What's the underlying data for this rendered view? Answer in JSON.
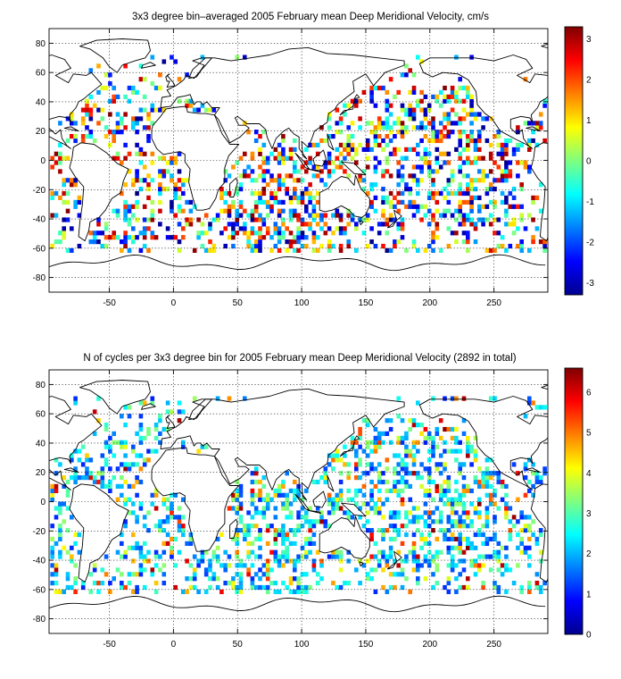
{
  "panels": [
    {
      "id": "velocity",
      "title": "3x3 degree bin–averaged 2005 February mean Deep Meridional Velocity, cm/s",
      "x_ticks": [
        "-50",
        "0",
        "50",
        "100",
        "150",
        "200",
        "250"
      ],
      "y_ticks": [
        "80",
        "60",
        "40",
        "20",
        "0",
        "-20",
        "-40",
        "-60",
        "-80"
      ],
      "colorbar": {
        "min": -3.3,
        "max": 3.3,
        "ticks": [
          "3",
          "2",
          "1",
          "0",
          "-1",
          "-2",
          "-3"
        ],
        "tick_values": [
          3,
          2,
          1,
          0,
          -1,
          -2,
          -3
        ]
      },
      "seed": 7
    },
    {
      "id": "counts",
      "title": "N of cycles per 3x3 degree bin for 2005 February mean Deep Meridional Velocity (2892 in total)",
      "x_ticks": [
        "-50",
        "0",
        "50",
        "100",
        "150",
        "200",
        "250"
      ],
      "y_ticks": [
        "80",
        "60",
        "40",
        "20",
        "0",
        "-20",
        "-40",
        "-60",
        "-80"
      ],
      "colorbar": {
        "min": 0,
        "max": 6.6,
        "ticks": [
          "6",
          "5",
          "4",
          "3",
          "2",
          "1",
          "0"
        ],
        "tick_values": [
          6,
          5,
          4,
          3,
          2,
          1,
          0
        ]
      },
      "seed": 19
    }
  ],
  "chart_data": [
    {
      "type": "heatmap",
      "title": "3x3 degree bin–averaged 2005 February mean Deep Meridional Velocity, cm/s",
      "xlim": [
        -97,
        292
      ],
      "ylim": [
        -90,
        90
      ],
      "bin_size_deg": 3,
      "colorscale": "jet",
      "zlim": [
        -3.3,
        3.3
      ],
      "x_ticks": [
        -50,
        0,
        50,
        100,
        150,
        200,
        250
      ],
      "y_ticks": [
        80,
        60,
        40,
        20,
        0,
        -20,
        -40,
        -60,
        -80
      ]
    },
    {
      "type": "heatmap",
      "title": "N of cycles per 3x3 degree bin for 2005 February mean Deep Meridional Velocity (2892 in total)",
      "xlim": [
        -97,
        292
      ],
      "ylim": [
        -90,
        90
      ],
      "bin_size_deg": 3,
      "colorscale": "jet",
      "zlim": [
        0,
        6.6
      ],
      "total_cycles": 2892,
      "x_ticks": [
        -50,
        0,
        50,
        100,
        150,
        200,
        250
      ],
      "y_ticks": [
        80,
        60,
        40,
        20,
        0,
        -20,
        -40,
        -60,
        -80
      ]
    }
  ]
}
